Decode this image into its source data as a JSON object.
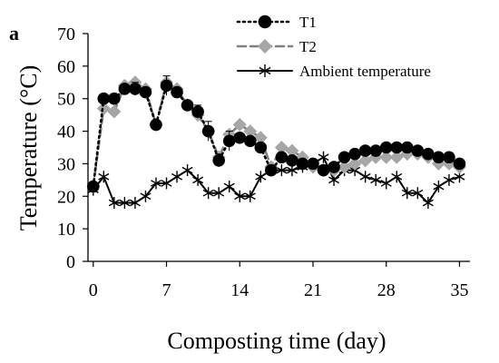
{
  "chart_data": {
    "type": "line",
    "panel_label": "a",
    "title": "",
    "xlabel": "Composting time (day)",
    "ylabel": "Temperature (°C)",
    "xlim": [
      -0.5,
      36
    ],
    "ylim": [
      0,
      70
    ],
    "xticks": [
      0,
      7,
      14,
      21,
      28,
      35
    ],
    "yticks": [
      0,
      10,
      20,
      30,
      40,
      50,
      60,
      70
    ],
    "grid": false,
    "legend_position": "top-right",
    "series": [
      {
        "name": "T1",
        "line_style": "dotted",
        "marker": "circle",
        "color": "#000000",
        "marker_color": "#000000",
        "x": [
          0,
          1,
          2,
          3,
          4,
          5,
          6,
          7,
          8,
          9,
          10,
          11,
          12,
          13,
          14,
          15,
          16,
          17,
          18,
          19,
          20,
          21,
          22,
          23,
          24,
          25,
          26,
          27,
          28,
          29,
          30,
          31,
          32,
          33,
          34,
          35
        ],
        "y": [
          23,
          50,
          50,
          53,
          53,
          52,
          42,
          54,
          52,
          48,
          46,
          40,
          31,
          37,
          38,
          37,
          35,
          28,
          32,
          31,
          30,
          30,
          28,
          29,
          32,
          33,
          34,
          34,
          35,
          35,
          35,
          34,
          33,
          32,
          32,
          30
        ],
        "error": [
          0,
          0,
          0,
          0,
          2,
          0,
          0,
          3,
          0,
          0,
          2,
          3,
          2,
          3,
          0,
          0,
          0,
          0,
          0,
          0,
          0,
          0,
          0,
          0,
          0,
          0,
          0,
          0,
          0,
          0,
          0,
          0,
          0,
          0,
          0,
          0
        ]
      },
      {
        "name": "T2",
        "line_style": "dashed",
        "marker": "diamond",
        "color": "#808080",
        "marker_color": "#a6a6a6",
        "x": [
          0,
          1,
          2,
          3,
          4,
          5,
          6,
          7,
          8,
          9,
          10,
          11,
          12,
          13,
          14,
          15,
          16,
          17,
          18,
          19,
          20,
          21,
          22,
          23,
          24,
          25,
          26,
          27,
          28,
          29,
          30,
          31,
          32,
          33,
          34,
          35
        ],
        "y": [
          23,
          47,
          46,
          54,
          55,
          53,
          42,
          55,
          53,
          48,
          45,
          40,
          32,
          39,
          42,
          40,
          38,
          29,
          35,
          34,
          32,
          29,
          28,
          28,
          29,
          30,
          31,
          32,
          32,
          32,
          33,
          33,
          32,
          30,
          30,
          29
        ],
        "error": [
          0,
          0,
          0,
          0,
          0,
          0,
          0,
          0,
          0,
          0,
          0,
          0,
          0,
          0,
          0,
          0,
          0,
          0,
          0,
          0,
          0,
          0,
          0,
          0,
          0,
          0,
          0,
          0,
          0,
          0,
          0,
          0,
          0,
          0,
          0,
          0
        ]
      },
      {
        "name": "Ambient temperature",
        "line_style": "solid",
        "marker": "asterisk",
        "color": "#000000",
        "marker_color": "#000000",
        "x": [
          0,
          1,
          2,
          3,
          4,
          5,
          6,
          7,
          8,
          9,
          10,
          11,
          12,
          13,
          14,
          15,
          16,
          17,
          18,
          19,
          20,
          21,
          22,
          23,
          24,
          25,
          26,
          27,
          28,
          29,
          30,
          31,
          32,
          33,
          34,
          35
        ],
        "y": [
          22,
          26,
          18,
          18,
          18,
          20,
          24,
          24,
          26,
          28,
          25,
          21,
          21,
          23,
          20,
          20,
          26,
          28,
          28,
          28,
          29,
          30,
          32,
          25,
          28,
          28,
          26,
          25,
          24,
          26,
          21,
          21,
          18,
          23,
          25,
          26
        ],
        "error": [
          0,
          0,
          0,
          0,
          0,
          0,
          0,
          0,
          0,
          0,
          0,
          0,
          0,
          0,
          0,
          0,
          0,
          0,
          0,
          0,
          0,
          0,
          0,
          0,
          0,
          0,
          0,
          0,
          0,
          0,
          0,
          0,
          0,
          0,
          0,
          0
        ]
      }
    ]
  }
}
